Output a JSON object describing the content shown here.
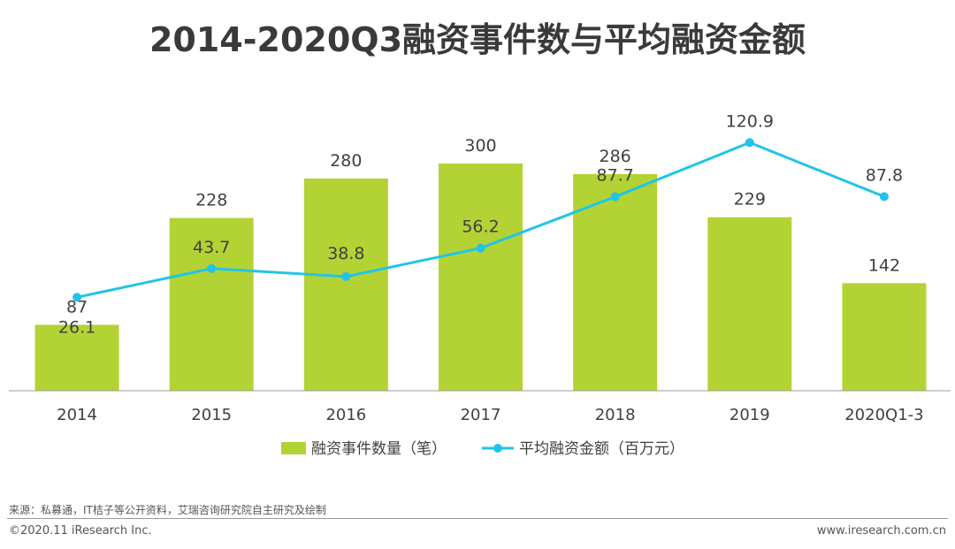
{
  "chart_data": {
    "type": "bar",
    "title": "2014-2020Q3融资事件数与平均融资金额",
    "categories": [
      "2014",
      "2015",
      "2016",
      "2017",
      "2018",
      "2019",
      "2020Q1-3"
    ],
    "series": [
      {
        "name": "融资事件数量（笔）",
        "type": "bar",
        "values": [
          87,
          228,
          280,
          300,
          286,
          229,
          142
        ],
        "labels": [
          "87",
          "228",
          "280",
          "300",
          "286",
          "229",
          "142"
        ],
        "color": "#b3d334"
      },
      {
        "name": "平均融资金额（百万元）",
        "type": "line",
        "values": [
          26.1,
          43.7,
          38.8,
          56.2,
          87.7,
          120.9,
          87.8
        ],
        "labels": [
          "26.1",
          "43.7",
          "38.8",
          "56.2",
          "87.7",
          "120.9",
          "87.8"
        ],
        "color": "#21c4e8"
      }
    ],
    "bar_ylim": [
      0,
      350
    ],
    "line_ylim": [
      -3,
      127
    ],
    "legend_position": "bottom-center",
    "grid": false
  },
  "footer": {
    "source": "来源：私募通，IT桔子等公开资料，艾瑞咨询研究院自主研究及绘制",
    "copyright": "©2020.11 iResearch Inc.",
    "website": "www.iresearch.com.cn"
  }
}
